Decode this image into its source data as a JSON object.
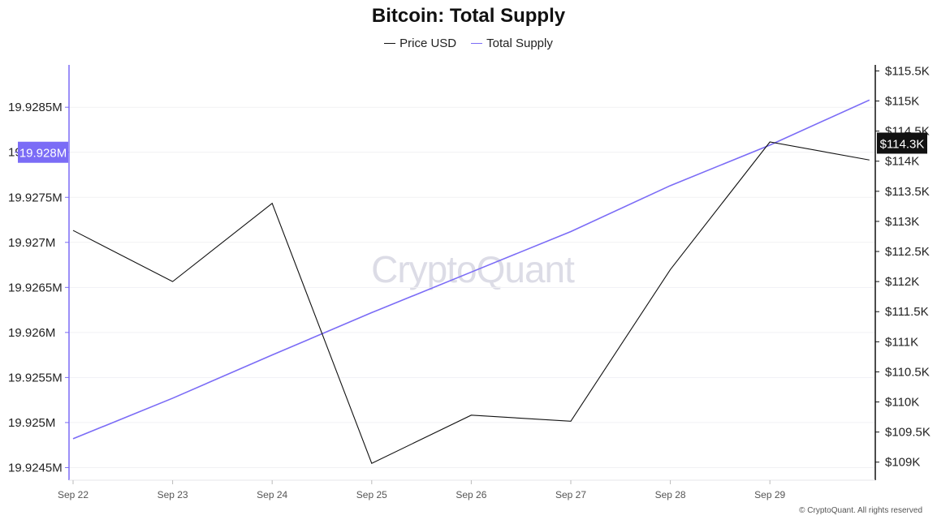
{
  "chart_data": {
    "type": "line",
    "title": "Bitcoin: Total Supply",
    "x": [
      "Sep 22",
      "Sep 23",
      "Sep 24",
      "Sep 25",
      "Sep 26",
      "Sep 27",
      "Sep 28",
      "Sep 29",
      ""
    ],
    "x_tick_labels": [
      "Sep 22",
      "Sep 23",
      "Sep 24",
      "Sep 25",
      "Sep 26",
      "Sep 27",
      "Sep 28",
      "Sep 29"
    ],
    "series": [
      {
        "name": "Price USD",
        "axis": "right",
        "color": "#111111",
        "values": [
          112.85,
          112.0,
          113.3,
          108.98,
          109.78,
          109.68,
          112.2,
          114.32,
          114.02
        ]
      },
      {
        "name": "Total Supply",
        "axis": "left",
        "color": "#7b6cf6",
        "values": [
          19.92482,
          19.92527,
          19.92575,
          19.92622,
          19.92667,
          19.92712,
          19.92763,
          19.92808,
          19.92858
        ]
      }
    ],
    "y_left": {
      "ylim": [
        19.92436,
        19.92897
      ],
      "ticks": [
        19.9245,
        19.925,
        19.9255,
        19.926,
        19.9265,
        19.927,
        19.9275,
        19.928,
        19.9285
      ],
      "tick_labels": [
        "19.9245M",
        "19.925M",
        "19.9255M",
        "19.926M",
        "19.9265M",
        "19.927M",
        "19.9275M",
        "19.928M",
        "19.9285M"
      ],
      "current_label": "19.928M",
      "current_value": 19.928
    },
    "y_right": {
      "ylim": [
        108.7,
        115.6
      ],
      "ticks": [
        109,
        109.5,
        110,
        110.5,
        111,
        111.5,
        112,
        112.5,
        113,
        113.5,
        114,
        114.5,
        115,
        115.5
      ],
      "tick_labels": [
        "$109K",
        "$109.5K",
        "$110K",
        "$110.5K",
        "$111K",
        "$111.5K",
        "$112K",
        "$112.5K",
        "$113K",
        "$113.5K",
        "$114K",
        "$114.5K",
        "$115K",
        "$115.5K"
      ],
      "current_label": "$114.3K",
      "current_value": 114.3
    },
    "grid": true,
    "legend_position": "top-center"
  },
  "watermark": "CryptoQuant",
  "copyright": "© CryptoQuant. All rights reserved"
}
